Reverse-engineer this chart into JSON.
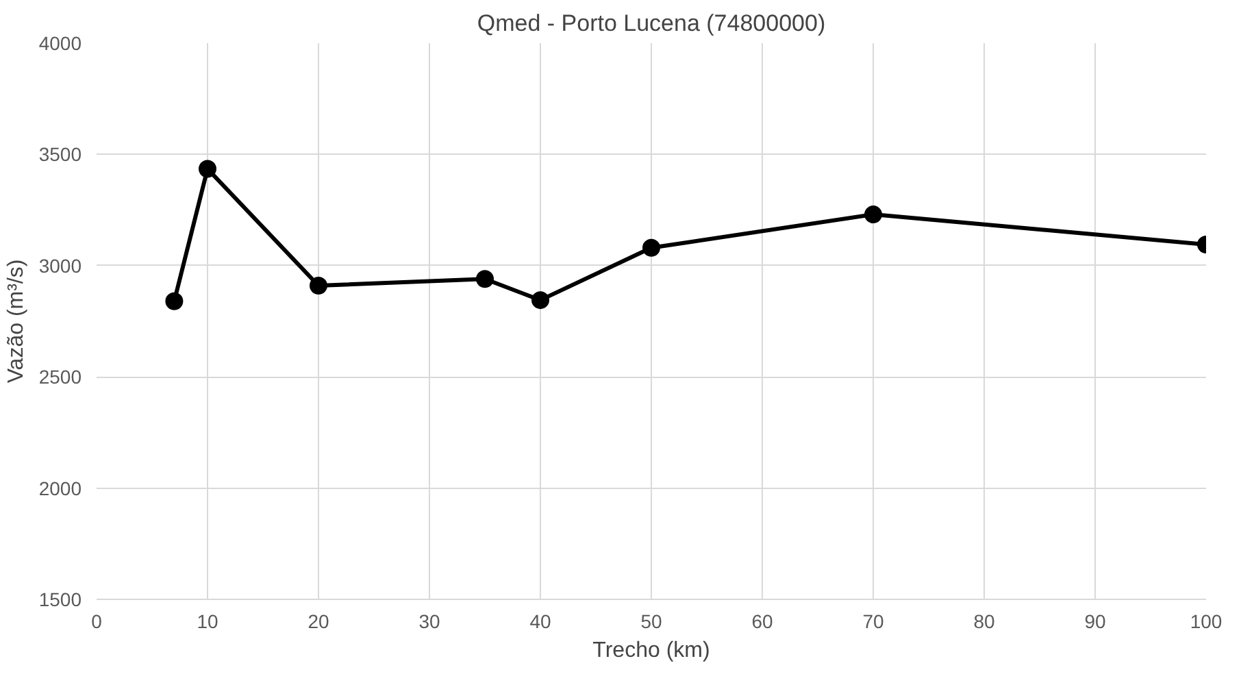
{
  "chart_data": {
    "type": "line",
    "title": "Qmed - Porto Lucena (74800000)",
    "xlabel": "Trecho (km)",
    "ylabel": "Vazão (m³/s)",
    "x": [
      7,
      10,
      20,
      35,
      40,
      50,
      70,
      100
    ],
    "series": [
      {
        "color": "#000000",
        "values": [
          2840,
          3435,
          2910,
          2940,
          2845,
          3080,
          3230,
          3095
        ]
      }
    ],
    "xlim": [
      0,
      100
    ],
    "xticks": [
      0,
      10,
      20,
      30,
      40,
      50,
      60,
      70,
      80,
      90,
      100
    ],
    "ylim": [
      1500,
      4000
    ],
    "yticks": [
      1500,
      2000,
      2500,
      3000,
      3500,
      4000
    ],
    "grid": true,
    "marker": "circle",
    "line_style": "solid"
  }
}
